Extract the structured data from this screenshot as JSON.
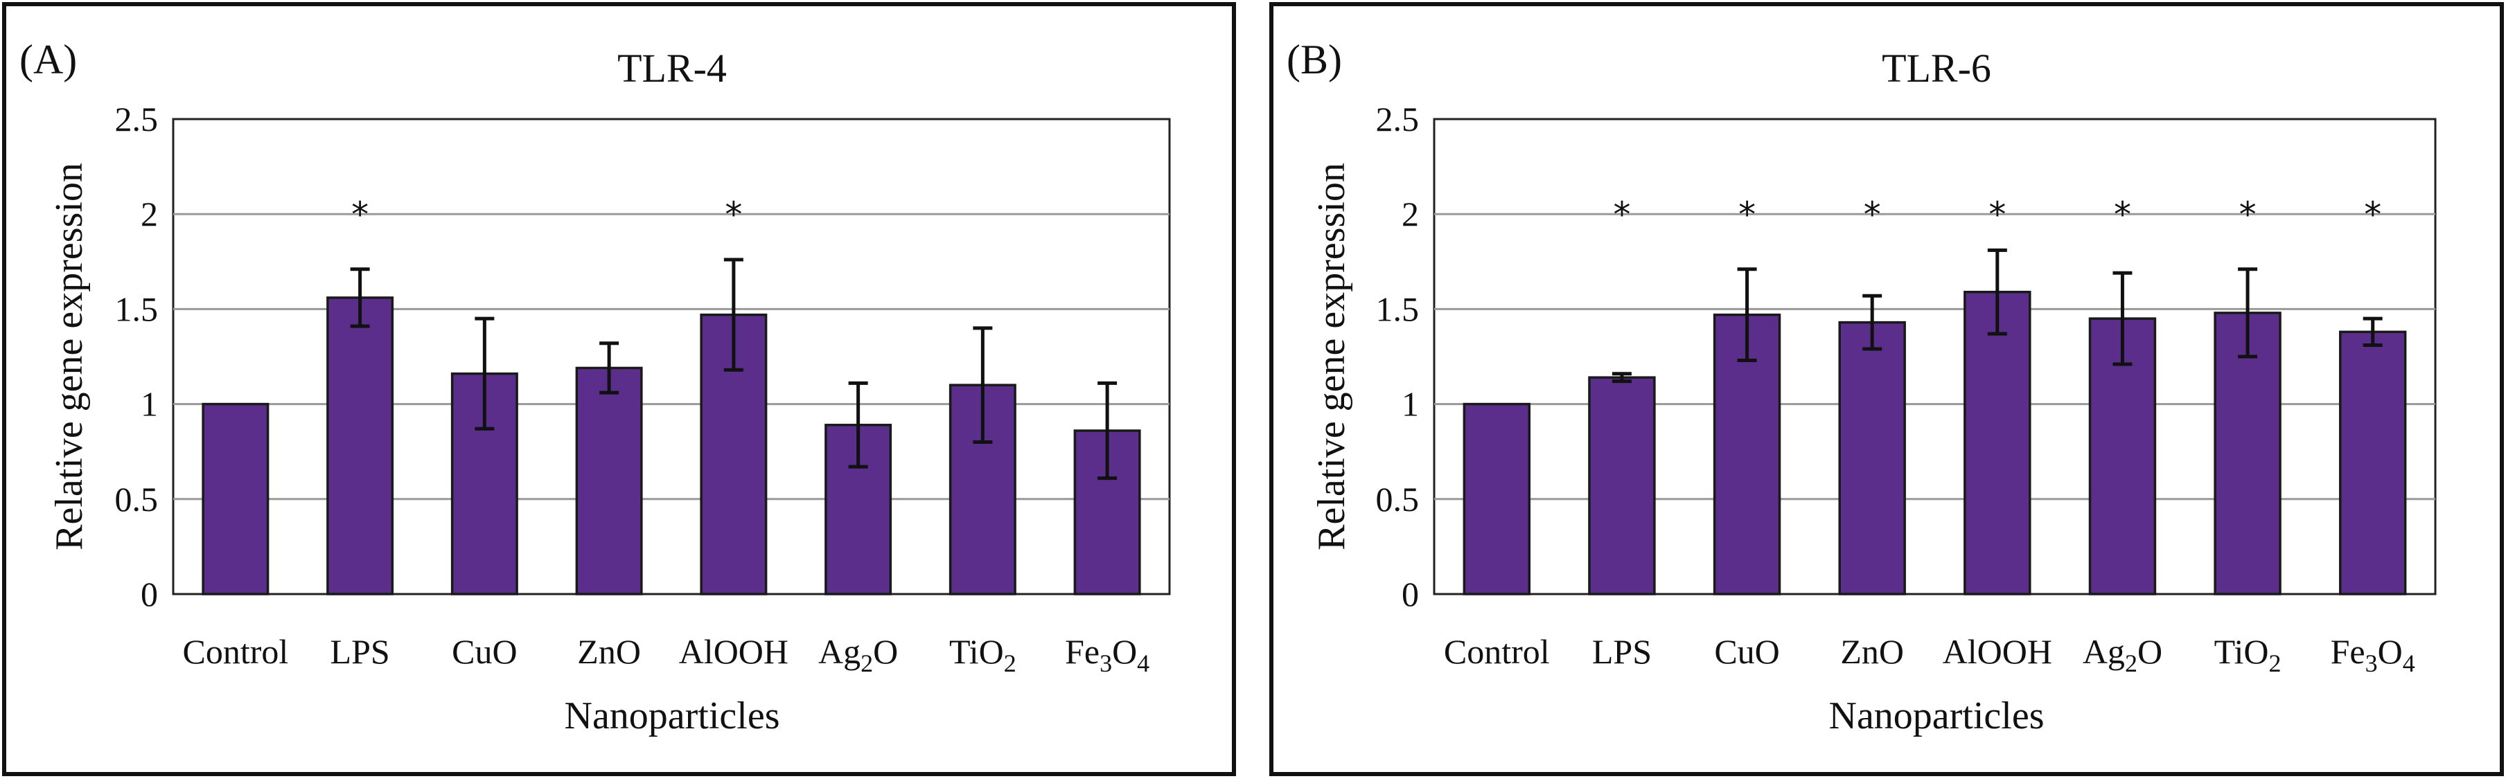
{
  "colors": {
    "bar_fill": "#5a2e8a",
    "frame": "#111111",
    "grid": "#9a9a9a"
  },
  "chart_data": [
    {
      "panel_label": "(A)",
      "type": "bar",
      "title": "TLR-4",
      "xlabel": "Nanoparticles",
      "ylabel": "Relative gene expression",
      "ylim": [
        0,
        2.5
      ],
      "yticks": [
        0,
        0.5,
        1,
        1.5,
        2,
        2.5
      ],
      "ytick_labels": [
        "0",
        "0.5",
        "1",
        "1.5",
        "2",
        "2.5"
      ],
      "grid": true,
      "significance_marker": "*",
      "categories": [
        {
          "base": "Control",
          "sub": "",
          "tail": ""
        },
        {
          "base": "LPS",
          "sub": "",
          "tail": ""
        },
        {
          "base": "CuO",
          "sub": "",
          "tail": ""
        },
        {
          "base": "ZnO",
          "sub": "",
          "tail": ""
        },
        {
          "base": "AlOOH",
          "sub": "",
          "tail": ""
        },
        {
          "base": "Ag",
          "sub": "2",
          "tail": "O"
        },
        {
          "base": "TiO",
          "sub": "2",
          "tail": ""
        },
        {
          "base": "Fe",
          "sub": "3",
          "tail": "O4"
        }
      ],
      "values": [
        1.0,
        1.56,
        1.16,
        1.19,
        1.47,
        0.89,
        1.1,
        0.86
      ],
      "errors": [
        0,
        0.15,
        0.29,
        0.13,
        0.29,
        0.22,
        0.3,
        0.25
      ],
      "significant": [
        false,
        true,
        false,
        false,
        true,
        false,
        false,
        false
      ]
    },
    {
      "panel_label": "(B)",
      "type": "bar",
      "title": "TLR-6",
      "xlabel": "Nanoparticles",
      "ylabel": "Relative gene expression",
      "ylim": [
        0,
        2.5
      ],
      "yticks": [
        0,
        0.5,
        1,
        1.5,
        2,
        2.5
      ],
      "ytick_labels": [
        "0",
        "0.5",
        "1",
        "1.5",
        "2",
        "2.5"
      ],
      "grid": true,
      "significance_marker": "*",
      "categories": [
        {
          "base": "Control",
          "sub": "",
          "tail": ""
        },
        {
          "base": "LPS",
          "sub": "",
          "tail": ""
        },
        {
          "base": "CuO",
          "sub": "",
          "tail": ""
        },
        {
          "base": "ZnO",
          "sub": "",
          "tail": ""
        },
        {
          "base": "AlOOH",
          "sub": "",
          "tail": ""
        },
        {
          "base": "Ag",
          "sub": "2",
          "tail": "O"
        },
        {
          "base": "TiO",
          "sub": "2",
          "tail": ""
        },
        {
          "base": "Fe",
          "sub": "3",
          "tail": "O4"
        }
      ],
      "values": [
        1.0,
        1.14,
        1.47,
        1.43,
        1.59,
        1.45,
        1.48,
        1.38
      ],
      "errors": [
        0,
        0.02,
        0.24,
        0.14,
        0.22,
        0.24,
        0.23,
        0.07
      ],
      "significant": [
        false,
        true,
        true,
        true,
        true,
        true,
        true,
        true
      ]
    }
  ]
}
